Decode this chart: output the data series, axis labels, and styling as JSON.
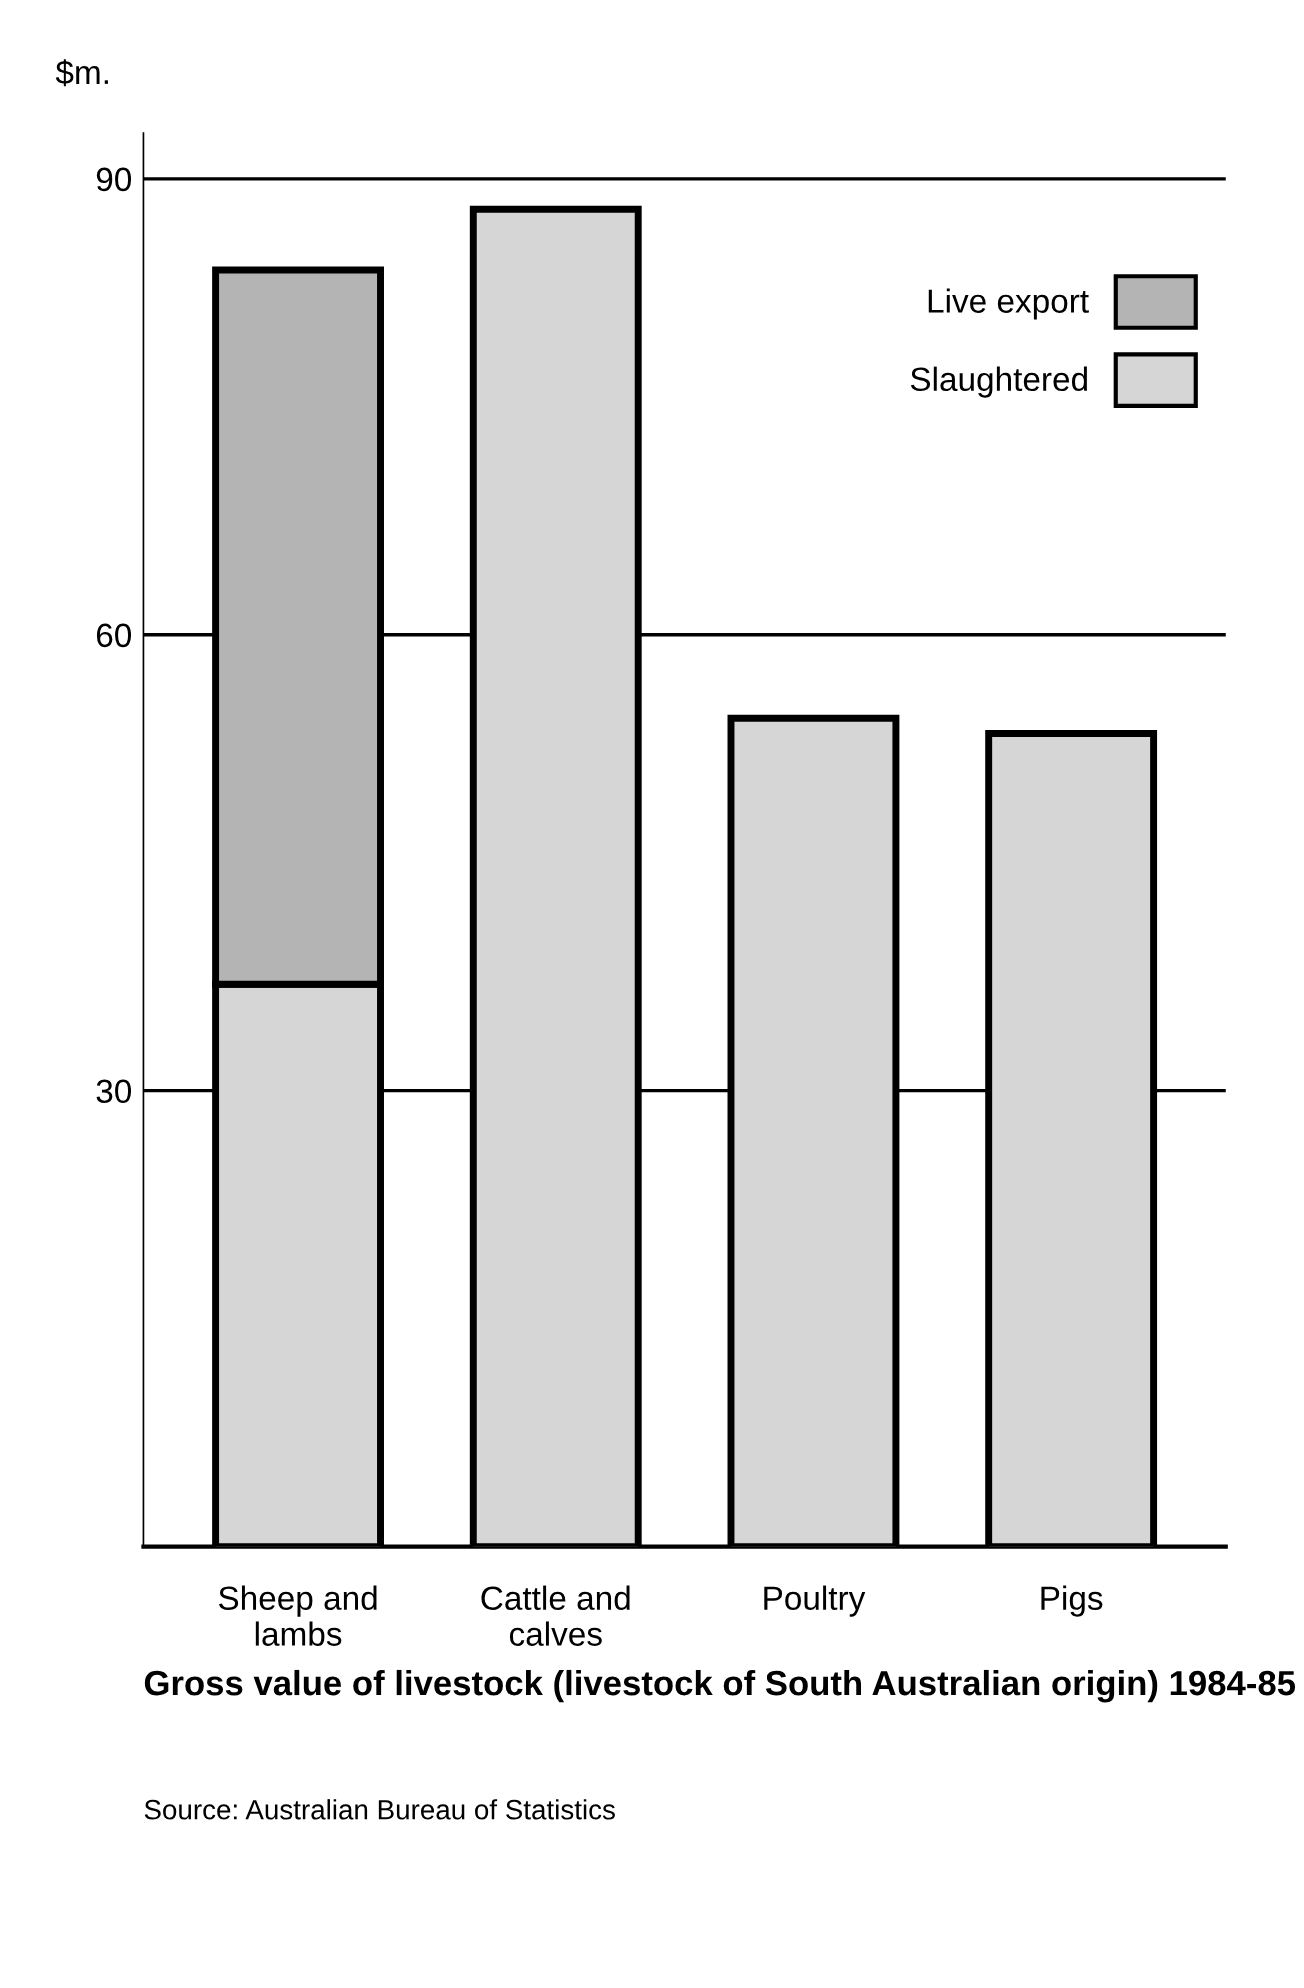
{
  "chart_data": {
    "type": "bar",
    "stacked": true,
    "title": "Gross value of livestock (livestock of South Australian origin) 1984-85",
    "ylabel": "$m.",
    "categories": [
      "Sheep and\nlambs",
      "Cattle and\ncalves",
      "Poultry",
      "Pigs"
    ],
    "series": [
      {
        "name": "Slaughtered",
        "color": "#d6d6d6",
        "values": [
          37,
          88,
          54.5,
          53.5
        ]
      },
      {
        "name": "Live export",
        "color": "#b4b4b4",
        "values": [
          47,
          null,
          null,
          null
        ]
      }
    ],
    "ylim": [
      0,
      93
    ],
    "yticks": [
      {
        "value": 0,
        "label": null
      },
      30,
      60,
      90
    ],
    "grid": "y",
    "legend": "top right",
    "annotations": [
      "Source: Australian Bureau of Statistics"
    ]
  }
}
